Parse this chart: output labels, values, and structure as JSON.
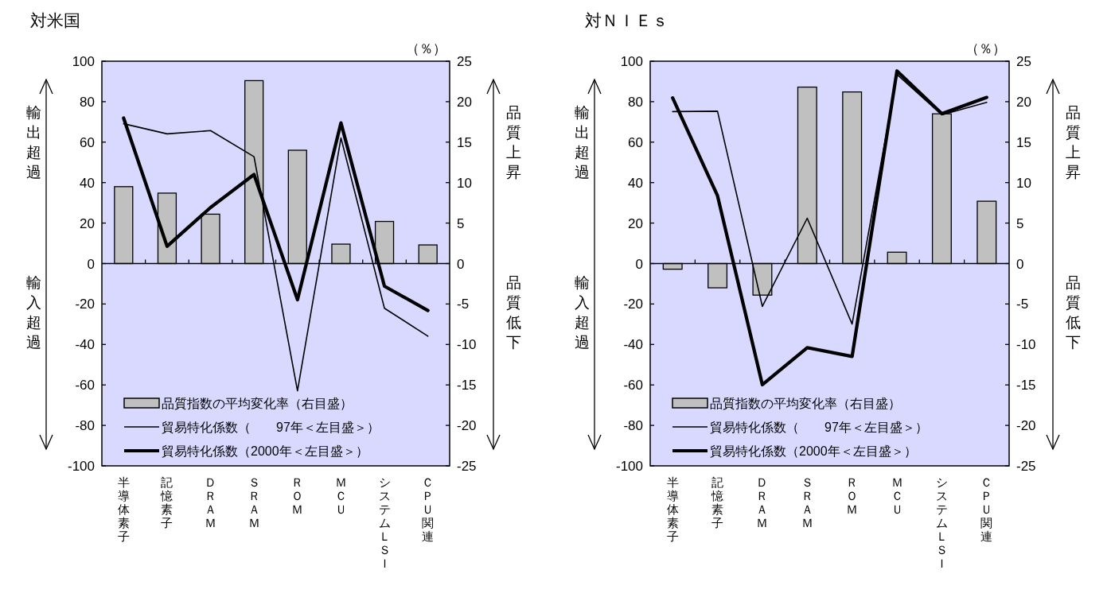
{
  "chart_data": [
    {
      "type": "bar",
      "title": "対米国",
      "categories": [
        "半導体素子",
        "記憶素子",
        "ＤＲＡＭ",
        "ＳＲＡＭ",
        "ＲＯＭ",
        "ＭＣＵ",
        "システムＬＳＩ",
        "ＣＰＵ関連"
      ],
      "series": [
        {
          "name": "品質指数の平均変化率（右目盛）",
          "axis": "y2",
          "color": "#c0c0c0",
          "values": [
            9.5,
            8.7,
            6.1,
            22.6,
            14.0,
            2.4,
            5.2,
            2.3
          ]
        },
        {
          "name": "貿易特化係数（　　97年＜左目盛＞）",
          "type": "line",
          "color": "#000000",
          "values": [
            69.1,
            64.1,
            65.7,
            52.8,
            -62.9,
            62.1,
            -22.1,
            -35.9
          ]
        },
        {
          "name": "貿易特化係数（2000年＜左目盛＞）",
          "type": "line",
          "color": "#000000",
          "values": [
            71.9,
            8.5,
            27.7,
            44.0,
            -17.9,
            69.5,
            -11.2,
            -23.2
          ]
        }
      ],
      "ylim": [
        -100,
        100
      ],
      "yticks": [
        -100,
        -80,
        -60,
        -40,
        -20,
        0,
        20,
        40,
        60,
        80,
        100
      ],
      "y2lim": [
        -25,
        25
      ],
      "y2ticks": [
        -25,
        -20,
        -15,
        -10,
        -5,
        0,
        5,
        10,
        15,
        20,
        25
      ],
      "legend": "bottom",
      "annotations": [
        "（％）",
        "輸出超過",
        "輸入超過",
        "品質上昇",
        "品質低下"
      ]
    },
    {
      "type": "bar",
      "title": "対ＮＩＥｓ",
      "categories": [
        "半導体素子",
        "記憶素子",
        "ＤＲＡＭ",
        "ＳＲＡＭ",
        "ＲＯＭ",
        "ＭＣＵ",
        "システムＬＳＩ",
        "ＣＰＵ関連"
      ],
      "series": [
        {
          "name": "品質指数の平均変化率（右目盛）",
          "axis": "y2",
          "color": "#c0c0c0",
          "values": [
            -0.7,
            -3.0,
            -3.9,
            21.8,
            21.2,
            1.4,
            18.5,
            7.7
          ]
        },
        {
          "name": "貿易特化係数（　　97年＜左目盛＞）",
          "type": "line",
          "color": "#000000",
          "values": [
            75.1,
            75.3,
            -21.2,
            22.4,
            -29.9,
            93.5,
            73.5,
            79.7
          ]
        },
        {
          "name": "貿易特化係数（2000年＜左目盛＞）",
          "type": "line",
          "color": "#000000",
          "values": [
            81.9,
            33.5,
            -59.9,
            -41.6,
            -45.9,
            95.2,
            74.1,
            82.1
          ]
        }
      ],
      "ylim": [
        -100,
        100
      ],
      "yticks": [
        -100,
        -80,
        -60,
        -40,
        -20,
        0,
        20,
        40,
        60,
        80,
        100
      ],
      "y2lim": [
        -25,
        25
      ],
      "y2ticks": [
        -25,
        -20,
        -15,
        -10,
        -5,
        0,
        5,
        10,
        15,
        20,
        25
      ],
      "legend": "bottom",
      "annotations": [
        "（％）",
        "輸出超過",
        "輸入超過",
        "品質上昇",
        "品質低下"
      ]
    }
  ]
}
